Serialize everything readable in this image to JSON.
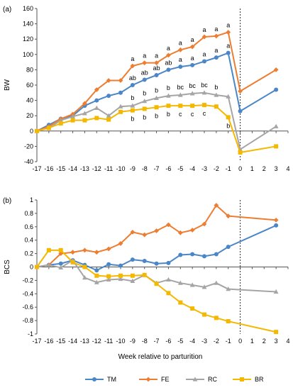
{
  "chart_data": [
    {
      "type": "line",
      "panel_label": "(a)",
      "ylabel": "BW",
      "ylim": [
        -40,
        160
      ],
      "yticks": [
        -40,
        -20,
        0,
        20,
        40,
        60,
        80,
        100,
        120,
        140,
        160
      ],
      "x": [
        -17,
        -16,
        -15,
        -14,
        -13,
        -12,
        -11,
        -10,
        -9,
        -8,
        -7,
        -6,
        -5,
        -4,
        -3,
        -2,
        -1,
        0,
        3
      ],
      "parturition_line": 0,
      "series": [
        {
          "name": "TM",
          "color": "#4a86c8",
          "marker": "circle",
          "values": [
            0,
            8,
            16,
            20,
            33,
            40,
            46,
            50,
            60,
            67,
            73,
            80,
            84,
            86,
            91,
            96,
            102,
            26,
            54
          ]
        },
        {
          "name": "FE",
          "color": "#ed7d31",
          "marker": "diamond",
          "values": [
            0,
            6,
            16,
            22,
            36,
            54,
            66,
            66,
            85,
            89,
            89,
            99,
            106,
            110,
            123,
            124,
            129,
            52,
            80
          ]
        },
        {
          "name": "RC",
          "color": "#a5a5a5",
          "marker": "triangle",
          "values": [
            0,
            4,
            14,
            19,
            23,
            30,
            20,
            32,
            33,
            39,
            43,
            46,
            47,
            49,
            50,
            47,
            45,
            -24,
            6
          ]
        },
        {
          "name": "BR",
          "color": "#f5b800",
          "marker": "square",
          "values": [
            0,
            4,
            10,
            14,
            14,
            17,
            15,
            25,
            27,
            29,
            31,
            33,
            33,
            33,
            34,
            32,
            18,
            -28,
            -20
          ]
        }
      ],
      "annotations": {
        "top": {
          "x": [
            -9,
            -8,
            -7,
            -6,
            -5,
            -4,
            -3,
            -2,
            -1
          ],
          "labels": [
            "a",
            "a",
            "a",
            "a",
            "a",
            "a",
            "a",
            "a",
            "a"
          ]
        },
        "mid": {
          "x": [
            -9,
            -8,
            -7,
            -6,
            -5,
            -4,
            -3,
            -2,
            -1
          ],
          "labels": [
            "ab",
            "ab",
            "ab",
            "ab",
            "a",
            "a",
            "a",
            "a",
            "a"
          ]
        },
        "low": {
          "x": [
            -9,
            -8,
            -7,
            -6,
            -5,
            -4,
            -3,
            -2
          ],
          "labels": [
            "b",
            "b",
            "b",
            "b",
            "bc",
            "bc",
            "bc",
            "b"
          ]
        },
        "bottom": {
          "x": [
            -9,
            -8,
            -7,
            -6,
            -5,
            -4,
            -3,
            -1
          ],
          "labels": [
            "b",
            "b",
            "b",
            "b",
            "c",
            "c",
            "c",
            "b"
          ]
        }
      }
    },
    {
      "type": "line",
      "panel_label": "(b)",
      "ylabel": "BCS",
      "ylim": [
        -1,
        1
      ],
      "yticks": [
        -1,
        -0.8,
        -0.6,
        -0.4,
        -0.2,
        0,
        0.2,
        0.4,
        0.6,
        0.8,
        1
      ],
      "x": [
        -17,
        -16,
        -15,
        -14,
        -13,
        -12,
        -11,
        -10,
        -9,
        -8,
        -7,
        -6,
        -5,
        -4,
        -3,
        -2,
        -1,
        0,
        3
      ],
      "parturition_line": 0,
      "series": [
        {
          "name": "TM",
          "color": "#4a86c8",
          "marker": "circle",
          "x": [
            -17,
            -16,
            -15,
            -14,
            -13,
            -12,
            -11,
            -10,
            -9,
            -8,
            -7,
            -6,
            -5,
            -4,
            -3,
            -2,
            -1,
            3
          ],
          "values": [
            0,
            0.03,
            0.05,
            0.1,
            0.03,
            -0.05,
            0.04,
            0.02,
            0.11,
            0.09,
            0.05,
            0.06,
            0.18,
            0.19,
            0.16,
            0.19,
            0.3,
            0.62
          ]
        },
        {
          "name": "FE",
          "color": "#ed7d31",
          "marker": "diamond",
          "x": [
            -17,
            -16,
            -15,
            -14,
            -13,
            -12,
            -11,
            -10,
            -9,
            -8,
            -7,
            -6,
            -5,
            -4,
            -3,
            -2,
            -1,
            3
          ],
          "values": [
            0,
            0.03,
            0.2,
            0.22,
            0.25,
            0.22,
            0.27,
            0.35,
            0.52,
            0.48,
            0.54,
            0.63,
            0.51,
            0.55,
            0.64,
            0.92,
            0.76,
            0.7
          ]
        },
        {
          "name": "RC",
          "color": "#a5a5a5",
          "marker": "triangle",
          "x": [
            -17,
            -16,
            -15,
            -14,
            -13,
            -12,
            -11,
            -10,
            -9,
            -8,
            -7,
            -6,
            -5,
            -4,
            -3,
            -2,
            -1,
            3
          ],
          "values": [
            0,
            0.03,
            -0.01,
            0.1,
            -0.16,
            -0.23,
            -0.19,
            -0.18,
            -0.21,
            -0.12,
            -0.24,
            -0.19,
            -0.24,
            -0.27,
            -0.3,
            -0.24,
            -0.33,
            -0.37
          ]
        },
        {
          "name": "BR",
          "color": "#f5b800",
          "marker": "square",
          "x": [
            -17,
            -16,
            -15,
            -14,
            -13,
            -12,
            -11,
            -10,
            -9,
            -8,
            -7,
            -6,
            -5,
            -4,
            -3,
            -2,
            -1,
            3
          ],
          "values": [
            0,
            0.25,
            0.25,
            0.07,
            0.0,
            -0.13,
            -0.14,
            -0.13,
            -0.13,
            -0.12,
            -0.25,
            -0.39,
            -0.53,
            -0.62,
            -0.71,
            -0.76,
            -0.81,
            -0.97
          ]
        }
      ]
    }
  ],
  "xlabel": "Week relative to parturition",
  "xtick_labels": [
    "-17",
    "-16",
    "-15",
    "-14",
    "-13",
    "-12",
    "-11",
    "-10",
    "-9",
    "-8",
    "-7",
    "-6",
    "-5",
    "-4",
    "-3",
    "-2",
    "-1",
    "0",
    "1",
    "2",
    "3",
    "4"
  ],
  "legend": {
    "placement": "bottom",
    "entries": [
      {
        "name": "TM",
        "color": "#4a86c8",
        "marker": "circle"
      },
      {
        "name": "FE",
        "color": "#ed7d31",
        "marker": "diamond"
      },
      {
        "name": "RC",
        "color": "#a5a5a5",
        "marker": "triangle"
      },
      {
        "name": "BR",
        "color": "#f5b800",
        "marker": "square"
      }
    ]
  }
}
